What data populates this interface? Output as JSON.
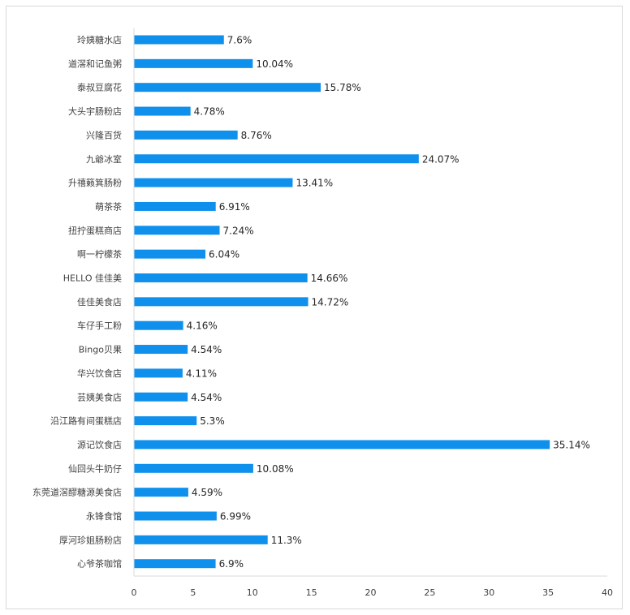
{
  "chart_data": {
    "type": "bar",
    "orientation": "horizontal",
    "title": "",
    "xlabel": "",
    "ylabel": "",
    "xlim": [
      0,
      40
    ],
    "x_ticks": [
      0,
      5,
      10,
      15,
      20,
      25,
      30,
      35,
      40
    ],
    "value_suffix": "%",
    "grid": false,
    "legend": "none",
    "bar_color": "#0f90ec",
    "categories": [
      "玲姨糖水店",
      "道滘和记鱼粥",
      "泰叔豆腐花",
      "大头宇肠粉店",
      "兴隆百货",
      "九爺冰室",
      "升禧籁箕肠粉",
      "萌茶茶",
      "扭拧蛋糕商店",
      "啊一柠檬茶",
      "HELLO 佳佳美",
      "佳佳美食店",
      "车仔手工粉",
      "Bingo贝果",
      "华兴饮食店",
      "芸姨美食店",
      "沿江路有间蛋糕店",
      "源记饮食店",
      "仙回头牛奶仔",
      "东莞道滘醪糖源美食店",
      "永锋食馆",
      "厚河珍姐肠粉店",
      "心爷茶咖馆"
    ],
    "values": [
      7.6,
      10.04,
      15.78,
      4.78,
      8.76,
      24.07,
      13.41,
      6.91,
      7.24,
      6.04,
      14.66,
      14.72,
      4.16,
      4.54,
      4.11,
      4.54,
      5.3,
      35.14,
      10.08,
      4.59,
      6.99,
      11.3,
      6.9
    ],
    "value_labels": [
      "7.6%",
      "10.04%",
      "15.78%",
      "4.78%",
      "8.76%",
      "24.07%",
      "13.41%",
      "6.91%",
      "7.24%",
      "6.04%",
      "14.66%",
      "14.72%",
      "4.16%",
      "4.54%",
      "4.11%",
      "4.54%",
      "5.3%",
      "35.14%",
      "10.08%",
      "4.59%",
      "6.99%",
      "11.3%",
      "6.9%"
    ]
  }
}
